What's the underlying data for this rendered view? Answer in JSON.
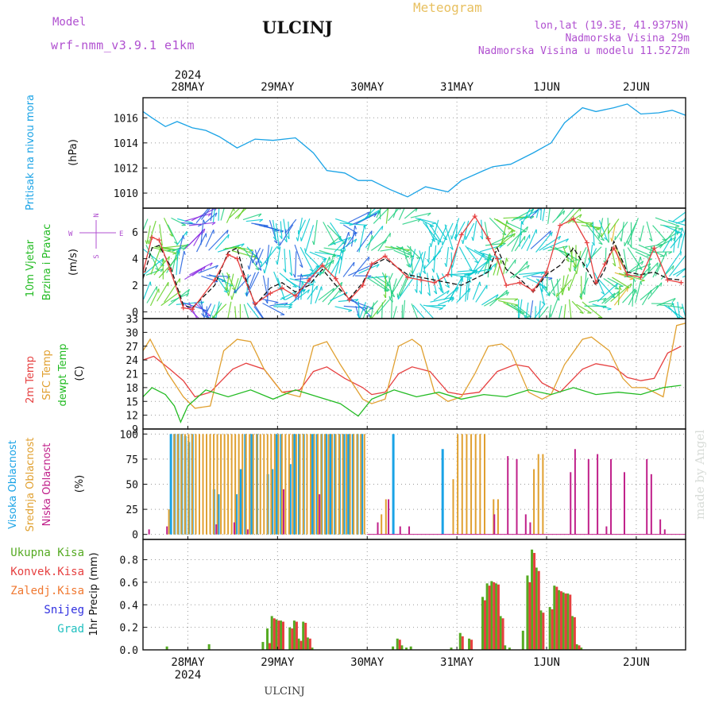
{
  "header": {
    "model_label": "Model",
    "model_name": "wrf-nmm_v3.9.1  e1km",
    "station": "ULCINJ",
    "meteogram": "Meteogram",
    "lonlat": "lon,lat (19.3E, 41.9375N)",
    "elev": "Nadmorska Visina 29m",
    "elev_model": "Nadmorska Visina u modelu 11.5272m",
    "year_top": "2024",
    "year_bottom": "2024",
    "footer": "ULCINJ",
    "watermark": "made by Angel"
  },
  "colors": {
    "pressure": "#1aa3e6",
    "wind_label": "#22bb22",
    "temp2m": "#e64040",
    "sfc": "#e0a030",
    "dewpt": "#22bb22",
    "high_cloud": "#1aa3e6",
    "mid_cloud": "#e0a030",
    "low_cloud": "#c0208a",
    "precip_total": "#55aa22",
    "precip_conv": "#e64040",
    "precip_frozen": "#f07830",
    "snow": "#3030e0",
    "grad": "#20c0c0",
    "header_purple": "#b050d0",
    "meteogram": "#e8c060"
  },
  "chart_data": [
    {
      "type": "line",
      "panel": "pressure",
      "ylabels": [
        "Pritisak na nivou mora",
        "(hPa)"
      ],
      "x_unit": "days since 27MAY 00UTC",
      "xticks": [
        "28MAY",
        "29MAY",
        "30MAY",
        "31MAY",
        "1JUN",
        "2JUN"
      ],
      "xlim": [
        0.5,
        6.55
      ],
      "ylim": [
        1008.8,
        1017.6
      ],
      "yticks": [
        1010,
        1012,
        1014,
        1016
      ],
      "grid": true,
      "series": [
        {
          "x": [
            0.5,
            0.6,
            0.75,
            0.88,
            1.05,
            1.2,
            1.35,
            1.55,
            1.75,
            1.95,
            2.2,
            2.4,
            2.55,
            2.75,
            2.9,
            3.05,
            3.25,
            3.45,
            3.65,
            3.9,
            4.05,
            4.3,
            4.4,
            4.6,
            4.85,
            5.05,
            5.2,
            5.4,
            5.55,
            5.75,
            5.9,
            6.05,
            6.25,
            6.4,
            6.55
          ],
          "y": [
            1016.5,
            1016.0,
            1015.3,
            1015.7,
            1015.2,
            1015.0,
            1014.5,
            1013.6,
            1014.3,
            1014.2,
            1014.4,
            1013.2,
            1011.8,
            1011.6,
            1011.0,
            1011.0,
            1010.3,
            1009.7,
            1010.5,
            1010.1,
            1011.0,
            1011.8,
            1012.1,
            1012.3,
            1013.2,
            1014.0,
            1015.6,
            1016.8,
            1016.5,
            1016.8,
            1017.1,
            1016.3,
            1016.4,
            1016.6,
            1016.2
          ]
        }
      ]
    },
    {
      "type": "line",
      "panel": "wind",
      "ylabels": [
        "10m Vjetar",
        "Brzina i Pravac",
        "(m/s)"
      ],
      "compass": {
        "north": "N",
        "east": "E",
        "west": "W",
        "south": "S"
      },
      "ylim": [
        -0.5,
        7.8
      ],
      "yticks": [
        0,
        2,
        4,
        6
      ],
      "grid": true,
      "series": [
        {
          "name": "speed",
          "color": "#111111",
          "x": [
            0.5,
            0.6,
            0.68,
            0.8,
            0.95,
            1.05,
            1.3,
            1.45,
            1.55,
            1.62,
            1.75,
            1.92,
            2.05,
            2.2,
            2.35,
            2.5,
            2.65,
            2.8,
            2.95,
            3.05,
            3.2,
            3.45,
            3.6,
            3.75,
            3.9,
            4.05,
            4.2,
            4.35,
            4.45,
            4.55,
            4.7,
            4.85,
            5.0,
            5.15,
            5.3,
            5.45,
            5.55,
            5.65,
            5.75,
            5.9,
            6.05,
            6.2,
            6.35,
            6.5
          ],
          "y": [
            2.5,
            4.8,
            5.0,
            3.5,
            0.5,
            0.3,
            2.0,
            4.5,
            4.8,
            3.0,
            0.5,
            1.8,
            2.2,
            1.5,
            2.0,
            3.2,
            2.0,
            1.0,
            2.2,
            3.5,
            4.0,
            2.8,
            2.6,
            2.4,
            2.2,
            2.0,
            2.5,
            3.0,
            4.8,
            3.2,
            2.5,
            1.5,
            2.8,
            3.5,
            4.8,
            3.2,
            2.0,
            3.2,
            5.3,
            3.0,
            2.8,
            3.0,
            2.5,
            2.4
          ]
        },
        {
          "name": "gust",
          "color": "#e64040",
          "x": [
            0.5,
            0.6,
            0.68,
            0.8,
            0.95,
            1.05,
            1.3,
            1.45,
            1.55,
            1.62,
            1.75,
            1.92,
            2.05,
            2.2,
            2.35,
            2.5,
            2.65,
            2.8,
            2.95,
            3.05,
            3.2,
            3.45,
            3.6,
            3.75,
            3.9,
            4.05,
            4.2,
            4.35,
            4.45,
            4.55,
            4.7,
            4.85,
            5.0,
            5.15,
            5.3,
            5.45,
            5.55,
            5.65,
            5.75,
            5.9,
            6.05,
            6.2,
            6.35,
            6.5
          ],
          "y": [
            3.0,
            5.6,
            5.4,
            3.2,
            0.3,
            0.2,
            2.4,
            4.3,
            4.0,
            2.7,
            0.6,
            1.4,
            1.8,
            1.2,
            2.4,
            3.5,
            2.5,
            0.9,
            2.0,
            3.6,
            4.2,
            2.6,
            2.4,
            2.2,
            2.8,
            5.8,
            7.2,
            5.5,
            4.0,
            2.0,
            2.2,
            1.6,
            3.0,
            6.5,
            7.0,
            5.2,
            2.2,
            3.6,
            4.8,
            2.8,
            2.6,
            4.8,
            2.4,
            2.2
          ]
        }
      ]
    },
    {
      "type": "line",
      "panel": "temperature",
      "ylabels": [
        "2m Temp",
        "SFC Temp",
        "dewpt Temp",
        "(C)"
      ],
      "ylim": [
        9,
        33
      ],
      "yticks": [
        9,
        12,
        15,
        18,
        21,
        24,
        27,
        30,
        33
      ],
      "grid": true,
      "series": [
        {
          "name": "2m Temp",
          "color": "#e64040",
          "x": [
            0.5,
            0.62,
            0.8,
            0.95,
            1.08,
            1.25,
            1.5,
            1.65,
            1.85,
            2.05,
            2.25,
            2.4,
            2.55,
            2.75,
            2.95,
            3.05,
            3.2,
            3.35,
            3.5,
            3.7,
            3.9,
            4.05,
            4.25,
            4.45,
            4.65,
            4.8,
            4.95,
            5.15,
            5.4,
            5.55,
            5.75,
            5.9,
            6.05,
            6.2,
            6.35,
            6.5
          ],
          "y": [
            24,
            24.8,
            22.0,
            19.5,
            16,
            17,
            22,
            23.3,
            22,
            17,
            17.5,
            21.5,
            22.5,
            20,
            18,
            16.5,
            17,
            21,
            22.5,
            21.5,
            17,
            16.5,
            17,
            21.5,
            23,
            22.5,
            19,
            17,
            22,
            23.2,
            22.5,
            20.2,
            19.5,
            20,
            25.5,
            27
          ]
        },
        {
          "name": "SFC Temp",
          "color": "#e0a030",
          "x": [
            0.5,
            0.58,
            0.78,
            0.95,
            1.08,
            1.25,
            1.4,
            1.55,
            1.7,
            1.85,
            2.05,
            2.25,
            2.4,
            2.55,
            2.7,
            2.95,
            3.05,
            3.2,
            3.35,
            3.5,
            3.6,
            3.75,
            3.9,
            4.05,
            4.2,
            4.35,
            4.5,
            4.6,
            4.8,
            4.95,
            5.05,
            5.2,
            5.4,
            5.5,
            5.7,
            5.85,
            5.95,
            6.1,
            6.3,
            6.45,
            6.55
          ],
          "y": [
            26,
            28.5,
            21.0,
            16.0,
            13.5,
            14.0,
            26.0,
            28.5,
            28.0,
            22.0,
            17.0,
            16.0,
            27.0,
            28.0,
            23.0,
            15.5,
            14.5,
            15.5,
            27.0,
            28.5,
            27.0,
            17.0,
            15.0,
            16.0,
            21.0,
            27.0,
            27.5,
            26.0,
            17.0,
            15.5,
            16.5,
            23.0,
            28.5,
            29.0,
            26.0,
            20.0,
            18.0,
            18.0,
            16.0,
            31.5,
            32.0
          ]
        },
        {
          "name": "dewpt Temp",
          "color": "#22bb22",
          "x": [
            0.5,
            0.6,
            0.75,
            0.85,
            0.92,
            1.0,
            1.2,
            1.45,
            1.7,
            1.95,
            2.2,
            2.45,
            2.7,
            2.9,
            3.05,
            3.3,
            3.55,
            3.8,
            4.05,
            4.3,
            4.55,
            4.8,
            5.05,
            5.3,
            5.55,
            5.8,
            6.05,
            6.3,
            6.5
          ],
          "y": [
            16.0,
            18.0,
            16.5,
            14.0,
            10.5,
            14.0,
            17.5,
            16.0,
            17.5,
            15.5,
            17.5,
            16.0,
            14.5,
            11.8,
            15.5,
            17.5,
            16.0,
            17.0,
            15.5,
            16.5,
            16.0,
            17.5,
            16.5,
            18.0,
            16.5,
            17.0,
            16.5,
            18.0,
            18.5
          ]
        }
      ]
    },
    {
      "type": "bar",
      "panel": "cloud",
      "ylabels": [
        "Visoka Oblacnost",
        "Srednja Oblacnost",
        "Niska Oblacnost",
        "(%)"
      ],
      "ylim": [
        -5,
        105
      ],
      "yticks": [
        0,
        25,
        50,
        75,
        100
      ],
      "grid": true,
      "series": [
        {
          "name": "Visoka Oblacnost",
          "color": "#1aa3e6",
          "x": [
            0.82,
            0.86,
            0.9,
            0.94,
            0.98,
            1.02,
            1.06,
            1.3,
            1.35,
            1.55,
            1.6,
            1.65,
            1.72,
            1.78,
            1.9,
            1.95,
            2.0,
            2.05,
            2.15,
            2.2,
            2.25,
            2.3,
            2.4,
            2.45,
            2.5,
            2.55,
            2.6,
            2.65,
            2.7,
            2.75,
            2.8,
            2.85,
            2.9,
            2.95,
            3.3,
            3.85
          ],
          "y": [
            100,
            100,
            100,
            100,
            98,
            92,
            100,
            45,
            40,
            40,
            65,
            100,
            100,
            100,
            60,
            65,
            100,
            100,
            70,
            100,
            100,
            100,
            100,
            100,
            100,
            100,
            100,
            100,
            100,
            100,
            100,
            100,
            100,
            100,
            100,
            85
          ]
        },
        {
          "name": "Srednja Oblacnost",
          "color": "#e0a030",
          "x": [
            0.78,
            0.84,
            0.88,
            0.92,
            0.96,
            1.0,
            1.04,
            1.08,
            1.12,
            1.16,
            1.2,
            1.24,
            1.28,
            1.32,
            1.36,
            1.4,
            1.44,
            1.48,
            1.52,
            1.56,
            1.6,
            1.64,
            1.68,
            1.72,
            1.76,
            1.8,
            1.84,
            1.88,
            1.92,
            1.96,
            2.0,
            2.04,
            2.08,
            2.12,
            2.16,
            2.2,
            2.24,
            2.28,
            2.32,
            2.36,
            2.4,
            2.44,
            2.48,
            2.52,
            2.56,
            2.6,
            2.64,
            2.68,
            2.72,
            2.76,
            2.8,
            2.84,
            2.88,
            2.92,
            2.96,
            3.15,
            3.2,
            3.95,
            4.0,
            4.05,
            4.1,
            4.15,
            4.2,
            4.25,
            4.3,
            4.4,
            4.45,
            4.85,
            4.9,
            4.95
          ],
          "y": [
            25,
            100,
            100,
            100,
            100,
            100,
            100,
            100,
            100,
            100,
            100,
            100,
            100,
            100,
            100,
            100,
            100,
            100,
            100,
            100,
            100,
            100,
            100,
            100,
            100,
            100,
            100,
            100,
            100,
            100,
            100,
            100,
            100,
            100,
            100,
            100,
            100,
            100,
            100,
            100,
            100,
            100,
            100,
            100,
            100,
            100,
            100,
            100,
            100,
            100,
            100,
            100,
            100,
            100,
            100,
            20,
            35,
            55,
            100,
            100,
            100,
            100,
            100,
            100,
            100,
            35,
            35,
            65,
            80,
            80
          ]
        },
        {
          "name": "Niska Oblacnost",
          "color": "#c0208a",
          "x": [
            0.55,
            0.75,
            1.3,
            1.5,
            1.65,
            2.05,
            2.45,
            3.1,
            3.22,
            3.35,
            3.45,
            4.4,
            4.55,
            4.65,
            4.75,
            4.8,
            5.25,
            5.3,
            5.45,
            5.55,
            5.65,
            5.7,
            5.85,
            6.1,
            6.15,
            6.25,
            6.3
          ],
          "y": [
            5,
            8,
            10,
            12,
            5,
            45,
            40,
            12,
            35,
            8,
            8,
            20,
            78,
            75,
            20,
            12,
            62,
            85,
            75,
            80,
            8,
            75,
            62,
            75,
            60,
            15,
            5
          ]
        }
      ]
    },
    {
      "type": "bar",
      "panel": "precipitation",
      "ylabels": [
        "1hr Precip (mm)"
      ],
      "legend": [
        "Ukupna Kisa",
        "Konvek.Kisa",
        "Zaledj.Kisa",
        "Snijeg",
        "Grad"
      ],
      "ylim": [
        0,
        0.98
      ],
      "yticks": [
        0.0,
        0.2,
        0.4,
        0.6,
        0.8
      ],
      "grid": true,
      "series": [
        {
          "name": "Ukupna Kisa",
          "color": "#55aa22",
          "x": [
            0.78,
            1.25,
            1.85,
            1.9,
            1.95,
            2.0,
            2.05,
            2.15,
            2.2,
            2.25,
            2.3,
            2.35,
            2.4,
            3.3,
            3.35,
            3.4,
            3.45,
            3.5,
            3.95,
            4.05,
            4.15,
            4.3,
            4.35,
            4.4,
            4.45,
            4.5,
            4.55,
            4.6,
            4.75,
            4.8,
            4.85,
            4.9,
            4.95,
            5.05,
            5.1,
            5.15,
            5.2,
            5.25,
            5.3,
            5.35,
            5.4
          ],
          "y": [
            0.03,
            0.05,
            0.07,
            0.19,
            0.3,
            0.27,
            0.26,
            0.2,
            0.26,
            0.1,
            0.25,
            0.11,
            0.02,
            0.03,
            0.1,
            0.04,
            0.02,
            0.03,
            0.02,
            0.15,
            0.1,
            0.47,
            0.59,
            0.61,
            0.59,
            0.3,
            0.04,
            0.02,
            0.17,
            0.66,
            0.89,
            0.73,
            0.35,
            0.38,
            0.57,
            0.53,
            0.51,
            0.5,
            0.3,
            0.05,
            0.02
          ]
        },
        {
          "name": "Konvek.Kisa",
          "color": "#e64040",
          "x": [
            1.9,
            1.95,
            2.0,
            2.05,
            2.15,
            2.2,
            2.25,
            2.3,
            2.35,
            3.35,
            4.05,
            4.15,
            4.3,
            4.35,
            4.4,
            4.45,
            4.5,
            4.8,
            4.85,
            4.9,
            4.95,
            5.05,
            5.1,
            5.15,
            5.2,
            5.25,
            5.3,
            5.35
          ],
          "y": [
            0.06,
            0.28,
            0.26,
            0.25,
            0.19,
            0.25,
            0.08,
            0.24,
            0.1,
            0.09,
            0.12,
            0.09,
            0.44,
            0.57,
            0.6,
            0.58,
            0.28,
            0.6,
            0.86,
            0.7,
            0.33,
            0.36,
            0.56,
            0.52,
            0.5,
            0.49,
            0.29,
            0.04
          ]
        },
        {
          "name": "Zaledj.Kisa",
          "color": "#f07830",
          "x": [],
          "y": []
        },
        {
          "name": "Snijeg",
          "color": "#3030e0",
          "x": [],
          "y": []
        },
        {
          "name": "Grad",
          "color": "#20c0c0",
          "x": [],
          "y": []
        }
      ]
    }
  ]
}
